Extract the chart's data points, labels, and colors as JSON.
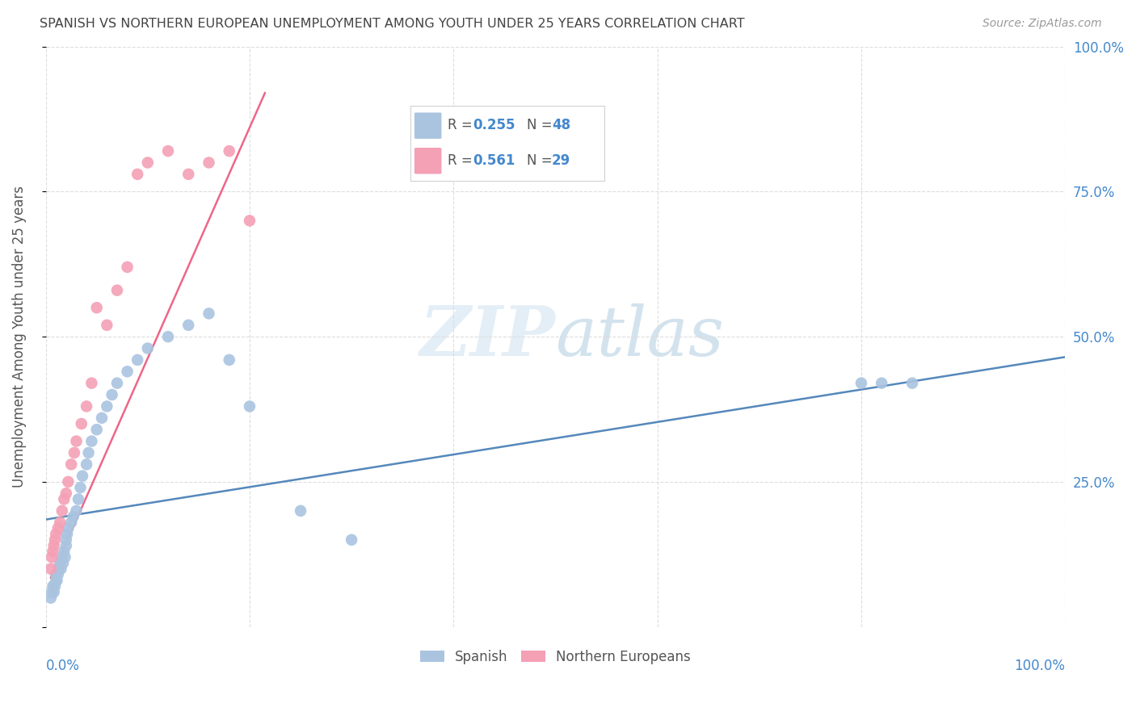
{
  "title": "SPANISH VS NORTHERN EUROPEAN UNEMPLOYMENT AMONG YOUTH UNDER 25 YEARS CORRELATION CHART",
  "source": "Source: ZipAtlas.com",
  "ylabel": "Unemployment Among Youth under 25 years",
  "xlim": [
    0.0,
    1.0
  ],
  "ylim": [
    0.0,
    1.0
  ],
  "legend_r1": "R = 0.255",
  "legend_n1": "N = 48",
  "legend_r2": "R = 0.561",
  "legend_n2": "N = 29",
  "color_spanish": "#aac4e0",
  "color_northern": "#f4a0b5",
  "color_line_spanish": "#5588bb",
  "color_line_northern": "#ee6688",
  "color_title": "#444444",
  "color_source": "#999999",
  "color_axis_right": "#4488cc",
  "color_grid": "#dddddd",
  "watermark": "ZIPatlas",
  "background_color": "#ffffff",
  "spanish_x": [
    0.005,
    0.006,
    0.007,
    0.008,
    0.009,
    0.01,
    0.01,
    0.011,
    0.012,
    0.013,
    0.013,
    0.014,
    0.015,
    0.016,
    0.017,
    0.018,
    0.019,
    0.02,
    0.02,
    0.021,
    0.022,
    0.025,
    0.027,
    0.03,
    0.032,
    0.034,
    0.036,
    0.04,
    0.042,
    0.045,
    0.05,
    0.055,
    0.06,
    0.065,
    0.07,
    0.08,
    0.09,
    0.1,
    0.12,
    0.14,
    0.16,
    0.18,
    0.2,
    0.25,
    0.3,
    0.8,
    0.82,
    0.85
  ],
  "spanish_y": [
    0.05,
    0.06,
    0.07,
    0.06,
    0.07,
    0.08,
    0.09,
    0.08,
    0.09,
    0.1,
    0.1,
    0.11,
    0.1,
    0.12,
    0.11,
    0.13,
    0.12,
    0.14,
    0.15,
    0.16,
    0.17,
    0.18,
    0.19,
    0.2,
    0.22,
    0.24,
    0.26,
    0.28,
    0.3,
    0.32,
    0.34,
    0.36,
    0.38,
    0.4,
    0.42,
    0.44,
    0.46,
    0.48,
    0.5,
    0.52,
    0.54,
    0.46,
    0.38,
    0.2,
    0.15,
    0.42,
    0.42,
    0.42
  ],
  "northern_x": [
    0.005,
    0.006,
    0.007,
    0.008,
    0.009,
    0.01,
    0.012,
    0.014,
    0.016,
    0.018,
    0.02,
    0.022,
    0.025,
    0.028,
    0.03,
    0.035,
    0.04,
    0.045,
    0.05,
    0.06,
    0.07,
    0.08,
    0.09,
    0.1,
    0.12,
    0.14,
    0.16,
    0.18,
    0.2
  ],
  "northern_y": [
    0.1,
    0.12,
    0.13,
    0.14,
    0.15,
    0.16,
    0.17,
    0.18,
    0.2,
    0.22,
    0.23,
    0.25,
    0.28,
    0.3,
    0.32,
    0.35,
    0.38,
    0.42,
    0.55,
    0.52,
    0.58,
    0.62,
    0.78,
    0.8,
    0.82,
    0.78,
    0.8,
    0.82,
    0.7
  ],
  "line_spanish_x0": 0.0,
  "line_spanish_y0": 0.185,
  "line_spanish_x1": 1.0,
  "line_spanish_y1": 0.465,
  "line_northern_x0": 0.005,
  "line_northern_y0": 0.085,
  "line_northern_x1": 0.215,
  "line_northern_y1": 0.92
}
